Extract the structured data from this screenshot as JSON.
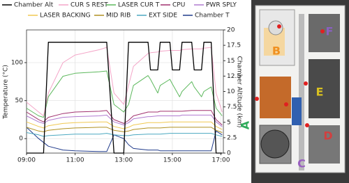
{
  "chart_data": {
    "type": "line",
    "ylabel": "Temperature (°C)",
    "y2label": "Chamber Altitude (km)",
    "x": [
      9,
      9.5,
      9.7,
      9.9,
      10.5,
      11,
      12,
      12.3,
      12.6,
      13,
      13.2,
      13.4,
      14,
      14.1,
      14.4,
      14.5,
      14.9,
      15,
      15.3,
      15.4,
      15.8,
      15.9,
      16.2,
      16.3,
      16.6,
      16.8,
      17.05
    ],
    "xlim": [
      9,
      17.1
    ],
    "xticks": [
      {
        "value": 9,
        "label": "09:00"
      },
      {
        "value": 11,
        "label": "11:00"
      },
      {
        "value": 13,
        "label": "13:00"
      },
      {
        "value": 15,
        "label": "15:00"
      },
      {
        "value": 17,
        "label": "17:00"
      }
    ],
    "ylim": [
      -19,
      143
    ],
    "yticks": [
      0,
      50,
      100
    ],
    "y2lim": [
      0,
      20
    ],
    "y2ticks": [
      0,
      2.5,
      5,
      7.5,
      10,
      12.5,
      15,
      17.5,
      20
    ],
    "grid": true,
    "series": [
      {
        "name": "Chamber Alt",
        "color": "#000000",
        "axis": "y2",
        "values": [
          0,
          0,
          0,
          18,
          18,
          18,
          18,
          18,
          0,
          0,
          18,
          18,
          18,
          13.5,
          13.5,
          18,
          18,
          13.5,
          13.5,
          18,
          18,
          13.5,
          13.5,
          18,
          18,
          0,
          0
        ]
      },
      {
        "name": "CUR S REST",
        "color": "#f4a6c8",
        "values": [
          48,
          35,
          30,
          60,
          100,
          110,
          117,
          120,
          60,
          45,
          70,
          95,
          112,
          113,
          114,
          115,
          116,
          116,
          116,
          117,
          118,
          118,
          118,
          119,
          120,
          60,
          35
        ]
      },
      {
        "name": "LASER CUR T",
        "color": "#5cb85c",
        "values": [
          40,
          30,
          28,
          55,
          82,
          86,
          88,
          89,
          45,
          35,
          45,
          70,
          83,
          78,
          60,
          70,
          78,
          72,
          55,
          62,
          75,
          68,
          55,
          62,
          68,
          40,
          30
        ]
      },
      {
        "name": "CPU",
        "color": "#a0306e",
        "values": [
          35,
          25,
          22,
          28,
          33,
          35,
          36,
          37,
          25,
          20,
          24,
          30,
          35,
          35,
          35,
          36,
          36,
          36,
          36,
          36,
          37,
          37,
          37,
          37,
          37,
          25,
          18
        ]
      },
      {
        "name": "PWR SPLY",
        "color": "#b07ad0",
        "values": [
          30,
          22,
          20,
          24,
          28,
          29,
          30,
          31,
          22,
          18,
          21,
          26,
          29,
          29,
          30,
          30,
          30,
          30,
          30,
          31,
          31,
          31,
          31,
          31,
          31,
          22,
          16
        ]
      },
      {
        "name": "LASER BACKING",
        "color": "#f0c850",
        "values": [
          22,
          16,
          14,
          17,
          20,
          21,
          22,
          22,
          16,
          13,
          15,
          18,
          21,
          21,
          21,
          21,
          22,
          22,
          22,
          22,
          22,
          22,
          22,
          22,
          22,
          16,
          12
        ]
      },
      {
        "name": "MID RIB",
        "color": "#b09020",
        "values": [
          15,
          10,
          9,
          11,
          13,
          14,
          15,
          15,
          11,
          9,
          10,
          12,
          14,
          14,
          14,
          14,
          15,
          15,
          15,
          15,
          15,
          15,
          15,
          15,
          15,
          11,
          8
        ]
      },
      {
        "name": "EXT SIDE",
        "color": "#4aa8c0",
        "values": [
          8,
          5,
          3,
          4,
          5,
          6,
          6,
          7,
          5,
          4,
          4,
          5,
          6,
          6,
          6,
          6,
          7,
          7,
          7,
          7,
          7,
          7,
          7,
          7,
          7,
          5,
          3
        ]
      },
      {
        "name": "Chamber T",
        "color": "#1f3a8a",
        "values": [
          15,
          0,
          -5,
          -10,
          -15,
          -16,
          -17,
          -17,
          5,
          0,
          -8,
          -13,
          -15,
          -15,
          -15,
          -16,
          -16,
          -16,
          -16,
          -16,
          -16,
          -16,
          -16,
          -16,
          -16,
          10,
          5
        ]
      }
    ]
  },
  "photo": {
    "labels": [
      "A",
      "B",
      "C",
      "D",
      "E",
      "F"
    ]
  }
}
